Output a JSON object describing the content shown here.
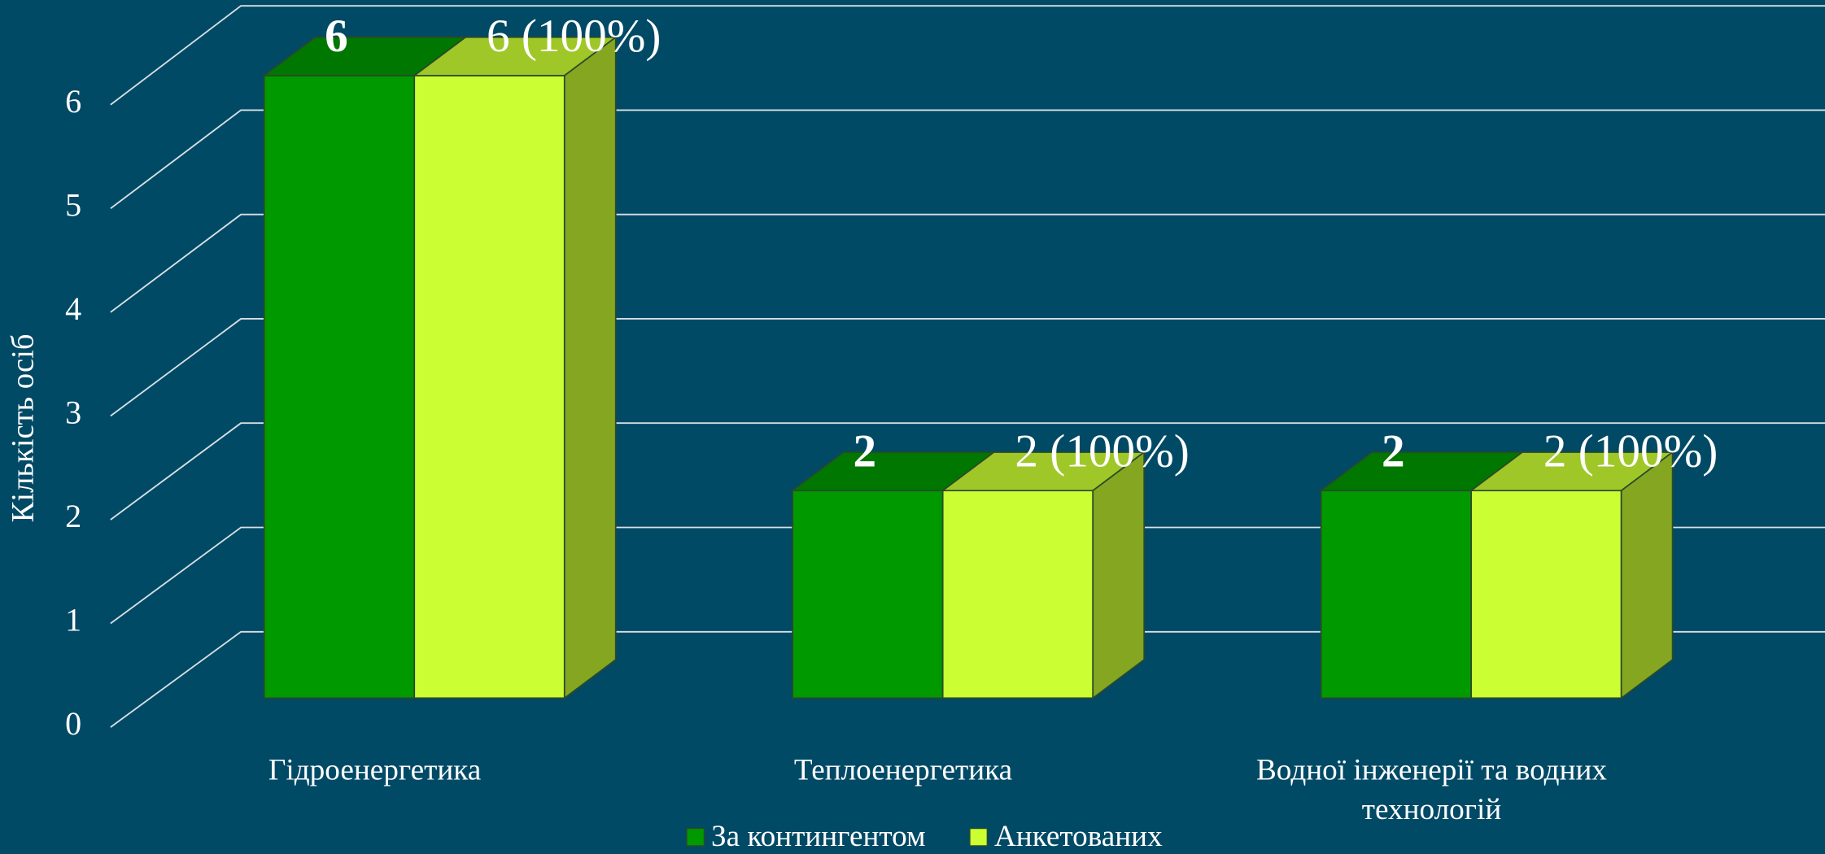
{
  "chart_data": {
    "type": "bar3d",
    "y_label": "Кількість осіб",
    "categories": [
      "Гідроенергетика",
      "Теплоенергетика",
      "Водної інженерії та водних технологій"
    ],
    "series": [
      {
        "name": "За контингентом",
        "color": "#009900",
        "values": [
          6,
          2,
          2
        ]
      },
      {
        "name": "Анкетованих",
        "color": "#ccff33",
        "values": [
          6,
          2,
          2
        ],
        "value_labels": [
          "6 (100%)",
          "2 (100%)",
          "2 (100%)"
        ]
      }
    ],
    "ylim": [
      0,
      6
    ],
    "yticks": [
      0,
      1,
      2,
      3,
      4,
      5,
      6
    ],
    "grid": true,
    "legend": "bottom"
  }
}
